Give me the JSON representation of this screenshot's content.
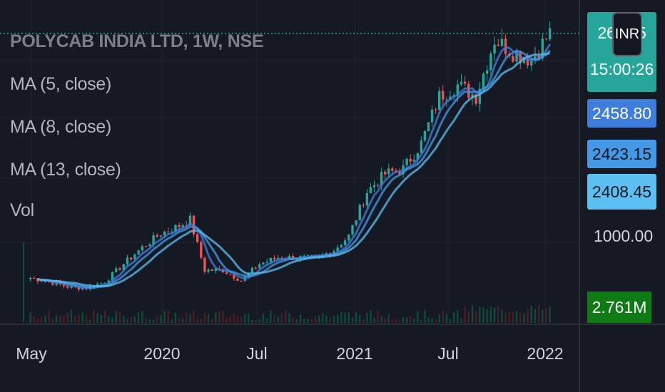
{
  "legend": {
    "title": "POLYCAB INDIA LTD, 1W, NSE",
    "ma5": "MA (5, close)",
    "ma8": "MA (8, close)",
    "ma13": "MA (13, close)",
    "vol": "Vol"
  },
  "price_scale": {
    "last_price_partial": "26",
    "last_price_suffix": "5",
    "countdown": "15:00:26",
    "currency": "INR",
    "ma5_value": "2458.80",
    "ma8_value": "2423.15",
    "ma13_value": "2408.45",
    "level_label": "1000.00",
    "volume_value": "2.761M"
  },
  "colors": {
    "background": "#151924",
    "up": "#26a69a",
    "down": "#ef5350",
    "ma5": "#3d7ddb",
    "ma8": "#4499e6",
    "ma13": "#5cbff2",
    "volume": "#0d7a14"
  },
  "chart_data": {
    "type": "candlestick",
    "title": "POLYCAB INDIA LTD, 1W, NSE",
    "x_ticks": [
      "May",
      "2020",
      "Jul",
      "2021",
      "Jul",
      "2022"
    ],
    "y_labels": [
      "1000.00"
    ],
    "series": [
      {
        "name": "MA (5, close)",
        "last": 2458.8
      },
      {
        "name": "MA (8, close)",
        "last": 2423.15
      },
      {
        "name": "MA (13, close)",
        "last": 2408.45
      },
      {
        "name": "Vol",
        "last": "2.761M"
      }
    ],
    "close_path": [
      {
        "date": "2019-04-29",
        "close": 720
      },
      {
        "date": "2019-06-03",
        "close": 690
      },
      {
        "date": "2019-07-08",
        "close": 650
      },
      {
        "date": "2019-08-12",
        "close": 640
      },
      {
        "date": "2019-09-16",
        "close": 690
      },
      {
        "date": "2019-10-21",
        "close": 830
      },
      {
        "date": "2019-11-25",
        "close": 960
      },
      {
        "date": "2019-12-30",
        "close": 1070
      },
      {
        "date": "2020-02-03",
        "close": 1130
      },
      {
        "date": "2020-02-24",
        "close": 1180
      },
      {
        "date": "2020-03-23",
        "close": 780
      },
      {
        "date": "2020-04-27",
        "close": 780
      },
      {
        "date": "2020-06-01",
        "close": 700
      },
      {
        "date": "2020-07-06",
        "close": 830
      },
      {
        "date": "2020-08-10",
        "close": 880
      },
      {
        "date": "2020-09-14",
        "close": 880
      },
      {
        "date": "2020-10-19",
        "close": 870
      },
      {
        "date": "2020-11-23",
        "close": 940
      },
      {
        "date": "2020-12-21",
        "close": 1050
      },
      {
        "date": "2021-01-25",
        "close": 1400
      },
      {
        "date": "2021-03-01",
        "close": 1540
      },
      {
        "date": "2021-04-05",
        "close": 1580
      },
      {
        "date": "2021-05-10",
        "close": 1780
      },
      {
        "date": "2021-06-14",
        "close": 2150
      },
      {
        "date": "2021-07-19",
        "close": 2240
      },
      {
        "date": "2021-08-23",
        "close": 2150
      },
      {
        "date": "2021-09-27",
        "close": 2600
      },
      {
        "date": "2021-11-01",
        "close": 2500
      },
      {
        "date": "2021-12-06",
        "close": 2440
      },
      {
        "date": "2022-01-10",
        "close": 2650
      }
    ]
  }
}
